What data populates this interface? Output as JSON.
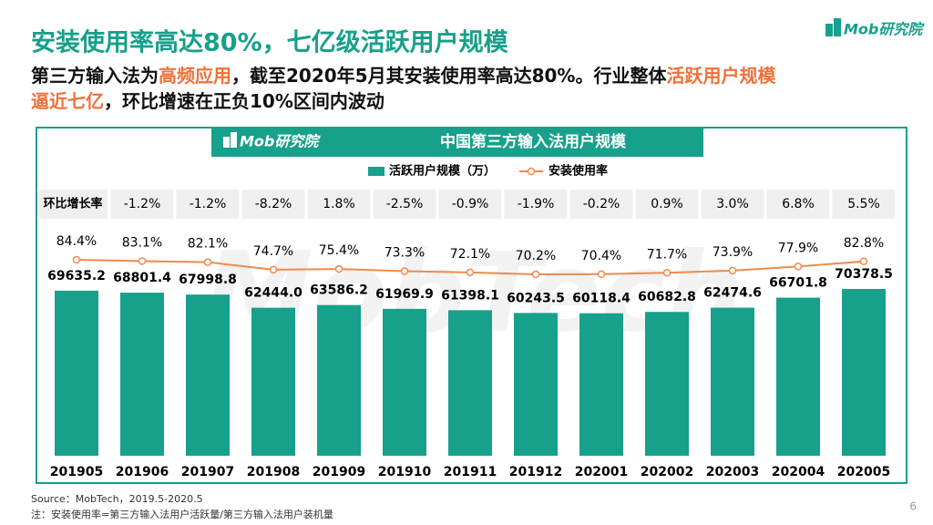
{
  "header": {
    "title": "安装使用率高达80%，七亿级活跃用户规模",
    "logo": "Mob研究院",
    "subtitle_lines": [
      [
        {
          "text": "第三方输入法为"
        },
        {
          "text": "高频应用",
          "highlight": true
        },
        {
          "text": "，截至2020年5月其安装使用率高达80%。行业整体"
        },
        {
          "text": "活跃用户规模",
          "highlight": true
        }
      ],
      [
        {
          "text": "逼近七亿",
          "highlight": true
        },
        {
          "text": "，环比增速在正负10%区间内波动"
        }
      ]
    ]
  },
  "chart_data": {
    "type": "bar",
    "title": "中国第三方输入法用户规模",
    "logo": "Mob研究院",
    "watermark": "MobTech",
    "categories": [
      "201905",
      "201906",
      "201907",
      "201908",
      "201909",
      "201910",
      "201911",
      "201912",
      "202001",
      "202002",
      "202003",
      "202004",
      "202005"
    ],
    "series": [
      {
        "name": "活跃用户规模（万）",
        "color": "#17a08b",
        "values": [
          69635.2,
          68801.4,
          67998.8,
          62444.0,
          63586.2,
          61969.9,
          61398.1,
          60243.5,
          60118.4,
          60682.8,
          62474.6,
          66701.8,
          70378.5
        ],
        "value_labels": [
          "69635.2",
          "68801.4",
          "67998.8",
          "62444.0",
          "63586.2",
          "61969.9",
          "61398.1",
          "60243.5",
          "60118.4",
          "60682.8",
          "62474.6",
          "66701.8",
          "70378.5"
        ]
      },
      {
        "name": "安装使用率",
        "color": "#f08a4b",
        "axis": "y2",
        "values": [
          84.4,
          83.1,
          82.1,
          74.7,
          75.4,
          73.3,
          72.1,
          70.2,
          70.4,
          71.7,
          73.9,
          77.9,
          82.8
        ],
        "value_labels": [
          "84.4%",
          "83.1%",
          "82.1%",
          "74.7%",
          "75.4%",
          "73.3%",
          "72.1%",
          "70.2%",
          "70.4%",
          "71.7%",
          "73.9%",
          "77.9%",
          "82.8%"
        ]
      }
    ],
    "growth": {
      "label": "环比增长率",
      "values": [
        -1.2,
        -1.2,
        -8.2,
        1.8,
        -2.5,
        -0.9,
        -1.9,
        -0.2,
        0.9,
        3.0,
        6.8,
        5.5
      ],
      "value_labels": [
        "-1.2%",
        "-1.2%",
        "-8.2%",
        "1.8%",
        "-2.5%",
        "-0.9%",
        "-1.9%",
        "-0.2%",
        "0.9%",
        "3.0%",
        "6.8%",
        "5.5%"
      ]
    }
  },
  "footer": {
    "source": "Source：MobTech，2019.5-2020.5",
    "note": "注：安装使用率=第三方输入法用户活跃量/第三方输入法用户装机量",
    "page": "6"
  }
}
